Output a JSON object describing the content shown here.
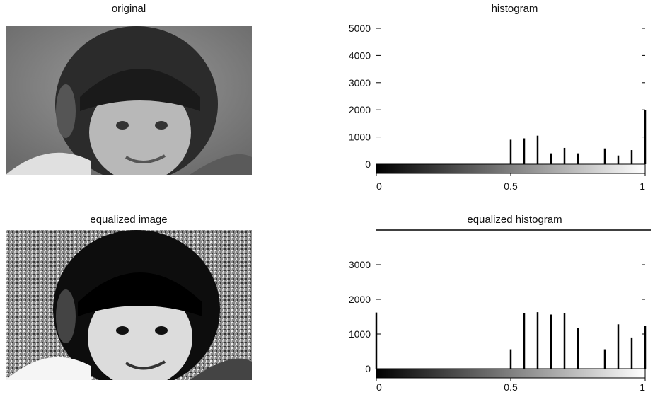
{
  "panels": {
    "original_title": "original",
    "histogram_title": "histogram",
    "equalized_title": "equalized image",
    "equalized_histogram_title": "equalized histogram"
  },
  "chart_data": [
    {
      "type": "bar",
      "title": "histogram",
      "xlim": [
        0,
        1
      ],
      "ylim": [
        0,
        5000
      ],
      "x_ticks": [
        0,
        0.5,
        1
      ],
      "x_tick_labels": [
        "0",
        "0.5",
        "1"
      ],
      "y_ticks": [
        0,
        1000,
        2000,
        3000,
        4000,
        5000
      ],
      "y_tick_labels": [
        "0",
        "1000",
        "2000",
        "3000",
        "4000",
        "5000"
      ],
      "colorbar": "grayscale",
      "x": [
        0.5,
        0.55,
        0.6,
        0.65,
        0.7,
        0.75,
        0.85,
        0.9,
        0.95,
        1.0
      ],
      "values": [
        900,
        950,
        1050,
        400,
        600,
        400,
        580,
        320,
        520,
        2000
      ]
    },
    {
      "type": "bar",
      "title": "equalized histogram",
      "xlim": [
        0,
        1
      ],
      "ylim": [
        0,
        4000
      ],
      "x_ticks": [
        0,
        0.5,
        1
      ],
      "x_tick_labels": [
        "0",
        "0.5",
        "1"
      ],
      "y_ticks": [
        0,
        1000,
        2000,
        3000
      ],
      "y_tick_labels": [
        "0",
        "1000",
        "2000",
        "3000"
      ],
      "colorbar": "grayscale",
      "x": [
        0.0,
        0.5,
        0.55,
        0.6,
        0.65,
        0.7,
        0.75,
        0.85,
        0.9,
        0.95,
        1.0
      ],
      "values": [
        1620,
        560,
        1600,
        1630,
        1560,
        1600,
        1180,
        560,
        1280,
        900,
        1240
      ]
    }
  ]
}
